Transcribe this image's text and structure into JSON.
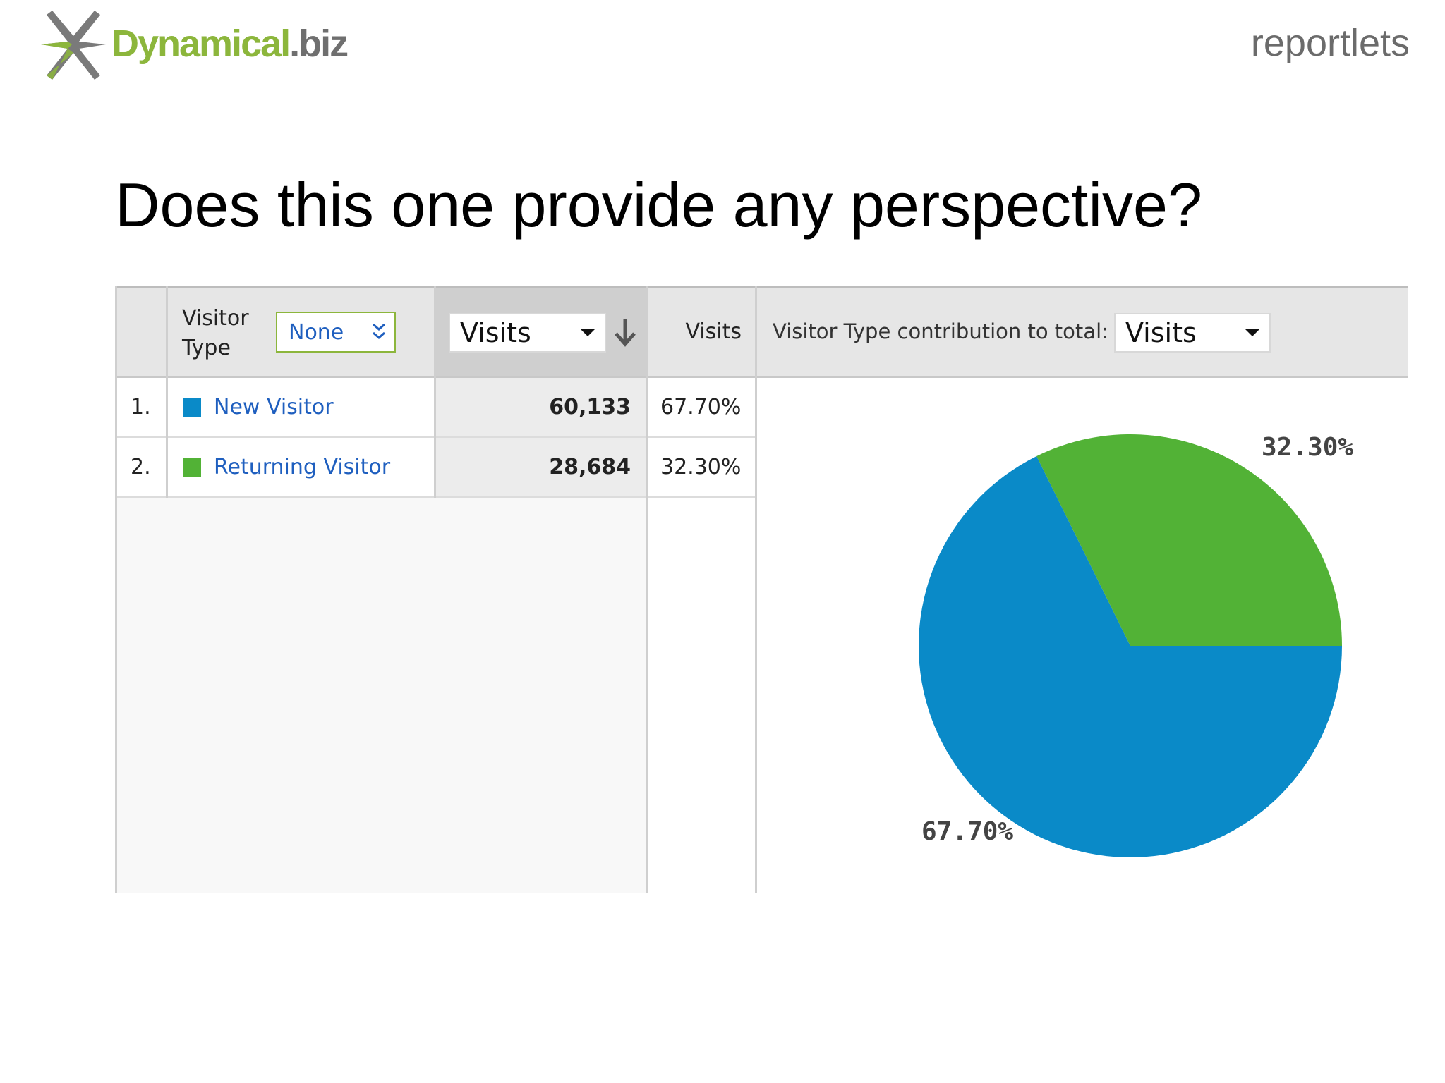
{
  "header": {
    "logo": {
      "brand": "Dynamical",
      "tld": ".biz"
    },
    "brand_right": "reportlets"
  },
  "slide": {
    "title": "Does this one provide any perspective?"
  },
  "report": {
    "dimension_label_line1": "Visitor",
    "dimension_label_line2": "Type",
    "secondary_dimension": "None",
    "metric_select": "Visits",
    "metric_column_label": "Visits",
    "contribution_label": "Visitor Type contribution to total:",
    "contribution_select": "Visits",
    "rows": [
      {
        "index": "1.",
        "name": "New Visitor",
        "value": "60,133",
        "percent": "67.70%",
        "color": "#0a8ac8"
      },
      {
        "index": "2.",
        "name": "Returning Visitor",
        "value": "28,684",
        "percent": "32.30%",
        "color": "#52b236"
      }
    ]
  },
  "chart_data": {
    "type": "pie",
    "categories": [
      "New Visitor",
      "Returning Visitor"
    ],
    "values": [
      67.7,
      32.3
    ],
    "colors": [
      "#0a8ac8",
      "#52b236"
    ],
    "labels": [
      "67.70%",
      "32.30%"
    ]
  }
}
